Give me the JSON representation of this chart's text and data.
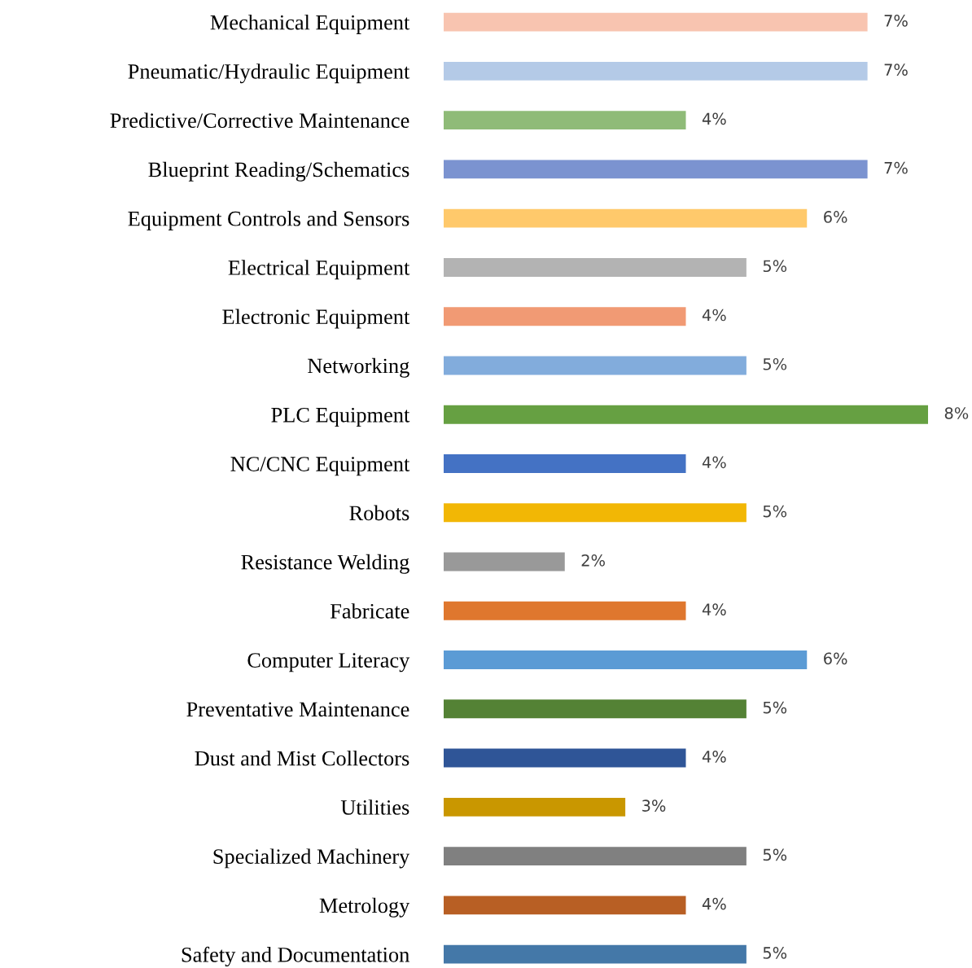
{
  "chart_data": {
    "type": "bar",
    "orientation": "horizontal",
    "categories": [
      "Mechanical Equipment",
      "Pneumatic/Hydraulic Equipment",
      "Predictive/Corrective Maintenance",
      "Blueprint Reading/Schematics",
      "Equipment Controls and Sensors",
      "Electrical Equipment",
      "Electronic Equipment",
      "Networking",
      "PLC Equipment",
      "NC/CNC Equipment",
      "Robots",
      "Resistance Welding",
      "Fabricate",
      "Computer Literacy",
      "Preventative Maintenance",
      "Dust and Mist Collectors",
      "Utilities",
      "Specialized Machinery",
      "Metrology",
      "Safety and Documentation"
    ],
    "values": [
      7,
      7,
      4,
      7,
      6,
      5,
      4,
      5,
      8,
      4,
      5,
      2,
      4,
      6,
      5,
      4,
      3,
      5,
      4,
      5
    ],
    "value_labels": [
      "7%",
      "7%",
      "4%",
      "7%",
      "6%",
      "5%",
      "4%",
      "5%",
      "8%",
      "4%",
      "5%",
      "2%",
      "4%",
      "6%",
      "5%",
      "4%",
      "3%",
      "5%",
      "4%",
      "5%"
    ],
    "colors": [
      "#f8c4b0",
      "#b4cae7",
      "#8fbb78",
      "#7b93d0",
      "#ffc96b",
      "#b3b3b3",
      "#f19a74",
      "#82acdc",
      "#66a042",
      "#4472c4",
      "#f2b705",
      "#999999",
      "#df772e",
      "#5b9bd5",
      "#548235",
      "#2f5597",
      "#c99700",
      "#808080",
      "#b85f24",
      "#4478a8"
    ],
    "legend": false,
    "grid": false
  }
}
